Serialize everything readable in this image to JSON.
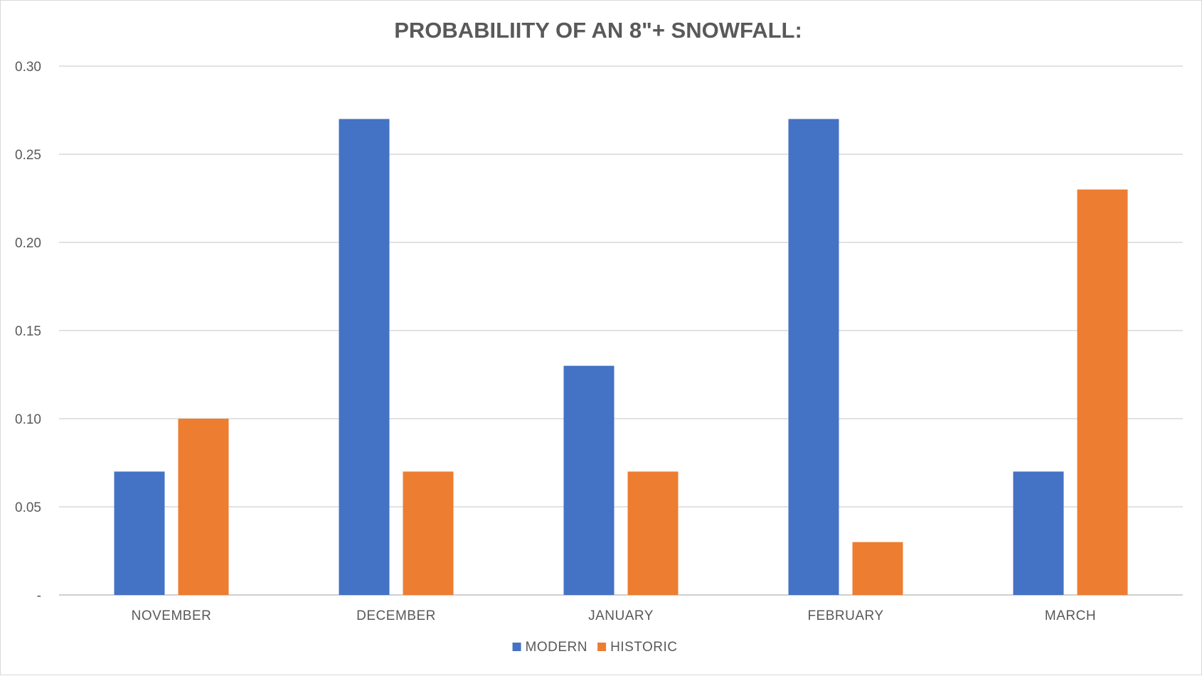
{
  "chart_data": {
    "type": "bar",
    "title": "PROBABILIITY OF AN 8\"+ SNOWFALL:",
    "xlabel": "",
    "ylabel": "",
    "categories": [
      "NOVEMBER",
      "DECEMBER",
      "JANUARY",
      "FEBRUARY",
      "MARCH"
    ],
    "series": [
      {
        "name": "MODERN",
        "color": "#4472c4",
        "values": [
          0.07,
          0.27,
          0.13,
          0.27,
          0.07
        ]
      },
      {
        "name": "HISTORIC",
        "color": "#ed7d31",
        "values": [
          0.1,
          0.07,
          0.07,
          0.03,
          0.23
        ]
      }
    ],
    "ylim": [
      0,
      0.3
    ],
    "yticks": [
      0,
      0.05,
      0.1,
      0.15,
      0.2,
      0.25,
      0.3
    ],
    "ytick_labels": [
      "-",
      "0.05",
      "0.10",
      "0.15",
      "0.20",
      "0.25",
      "0.30"
    ],
    "grid": true,
    "legend_position": "bottom"
  }
}
